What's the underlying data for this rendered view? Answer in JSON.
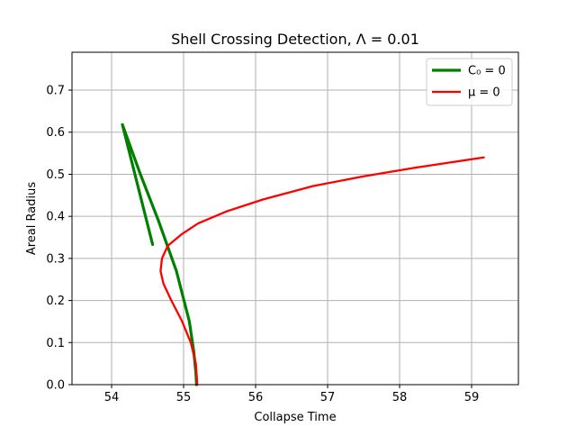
{
  "chart_data": {
    "type": "line",
    "title": "Shell Crossing Detection, Λ = 0.01",
    "xlabel": "Collapse Time",
    "ylabel": "Areal Radius",
    "xlim": [
      53.45,
      59.65
    ],
    "ylim": [
      0.0,
      0.79
    ],
    "xticks": [
      54,
      55,
      56,
      57,
      58,
      59
    ],
    "yticks": [
      0.0,
      0.1,
      0.2,
      0.3,
      0.4,
      0.5,
      0.6,
      0.7
    ],
    "xtick_labels": [
      "54",
      "55",
      "56",
      "57",
      "58",
      "59"
    ],
    "ytick_labels": [
      "0.0",
      "0.1",
      "0.2",
      "0.3",
      "0.4",
      "0.5",
      "0.6",
      "0.7"
    ],
    "grid": true,
    "legend_position": "top-right",
    "series": [
      {
        "name": "C₀ = 0",
        "color": "#008000",
        "points": [
          [
            54.57,
            0.333
          ],
          [
            54.15,
            0.618
          ],
          [
            54.4,
            0.5
          ],
          [
            54.65,
            0.39
          ],
          [
            54.9,
            0.27
          ],
          [
            55.08,
            0.15
          ],
          [
            55.14,
            0.08
          ],
          [
            55.17,
            0.03
          ],
          [
            55.18,
            0.0
          ]
        ]
      },
      {
        "name": "μ = 0",
        "color": "#ff0000",
        "points": [
          [
            55.19,
            0.0
          ],
          [
            55.17,
            0.05
          ],
          [
            55.1,
            0.1
          ],
          [
            54.98,
            0.15
          ],
          [
            54.83,
            0.2
          ],
          [
            54.72,
            0.24
          ],
          [
            54.68,
            0.27
          ],
          [
            54.7,
            0.3
          ],
          [
            54.78,
            0.33
          ],
          [
            54.97,
            0.357
          ],
          [
            55.2,
            0.383
          ],
          [
            55.6,
            0.412
          ],
          [
            56.1,
            0.44
          ],
          [
            56.8,
            0.472
          ],
          [
            57.5,
            0.495
          ],
          [
            58.2,
            0.515
          ],
          [
            58.7,
            0.528
          ],
          [
            59.17,
            0.54
          ]
        ]
      }
    ]
  }
}
